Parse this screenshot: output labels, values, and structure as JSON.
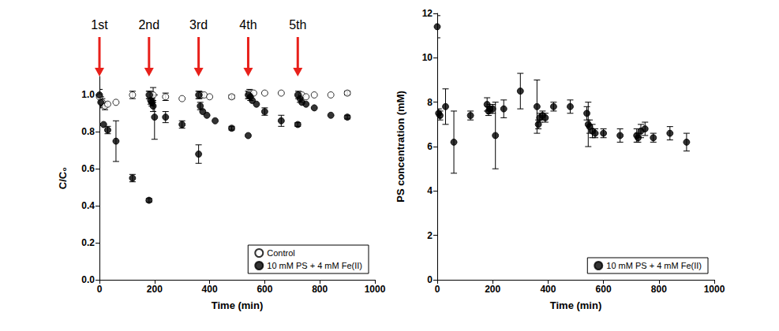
{
  "chart_data": [
    {
      "type": "scatter",
      "x_label": "Time (min)",
      "y_label": "C/C₀",
      "xlim": [
        0,
        1000
      ],
      "xticks": [
        0,
        200,
        400,
        600,
        800,
        1000
      ],
      "ylim": [
        0,
        1.1
      ],
      "yticks": [
        {
          "value": 0,
          "label": "0.0"
        },
        0.2,
        0.4,
        0.6,
        0.8,
        {
          "value": 1,
          "label": "1.0"
        }
      ],
      "grid": false,
      "legend": "lower right",
      "annotations": [
        {
          "text": "1st",
          "x": 0
        },
        {
          "text": "2nd",
          "x": 180
        },
        {
          "text": "3rd",
          "x": 360
        },
        {
          "text": "4th",
          "x": 540
        },
        {
          "text": "5th",
          "x": 720
        }
      ],
      "series": [
        {
          "name": "Control",
          "color": "#000000",
          "marker": "hollow",
          "x": [
            0,
            10,
            20,
            30,
            60,
            120,
            180,
            195,
            240,
            300,
            360,
            370,
            380,
            400,
            480,
            540,
            545,
            560,
            600,
            660,
            720,
            735,
            750,
            780,
            840,
            900
          ],
          "values": [
            0.99,
            0.96,
            0.94,
            0.95,
            0.96,
            1.0,
            1.0,
            1.0,
            0.99,
            0.98,
            1.0,
            1.0,
            1.0,
            0.99,
            0.99,
            1.0,
            1.01,
            1.01,
            1.01,
            1.01,
            1.0,
            1.0,
            0.99,
            1.0,
            1.0,
            1.01
          ],
          "errors": [
            0.04,
            0.02,
            0.02,
            0,
            0,
            0.02,
            0.02,
            0.04,
            0.02,
            0,
            0.02,
            0,
            0,
            0,
            0.01,
            0.02,
            0.02,
            0,
            0,
            0,
            0,
            0,
            0,
            0,
            0,
            0.01
          ]
        },
        {
          "name": "10 mM PS + 4 mM Fe(II)",
          "color": "#000000",
          "marker": "filled",
          "x": [
            0,
            5,
            15,
            30,
            60,
            120,
            180,
            182,
            186,
            190,
            195,
            200,
            240,
            300,
            360,
            362,
            366,
            375,
            390,
            420,
            480,
            540,
            542,
            548,
            555,
            570,
            600,
            660,
            720,
            722,
            728,
            735,
            750,
            780,
            840,
            900
          ],
          "values": [
            1.0,
            0.96,
            0.84,
            0.81,
            0.75,
            0.55,
            0.43,
            1.0,
            0.97,
            0.96,
            0.94,
            0.88,
            0.88,
            0.84,
            0.68,
            1.0,
            0.94,
            0.91,
            0.89,
            0.86,
            0.82,
            0.78,
            1.0,
            0.99,
            0.97,
            0.95,
            0.91,
            0.86,
            0.84,
            1.0,
            0.98,
            0.96,
            0.95,
            0.93,
            0.89,
            0.88
          ],
          "errors": [
            0,
            0.03,
            0,
            0.02,
            0.11,
            0.02,
            0.01,
            0.02,
            0.02,
            0.02,
            0.03,
            0.12,
            0.03,
            0.02,
            0.05,
            0.02,
            0.02,
            0,
            0,
            0,
            0.01,
            0,
            0.02,
            0.02,
            0,
            0,
            0.02,
            0.03,
            0.01,
            0.02,
            0.02,
            0,
            0,
            0,
            0,
            0.01
          ]
        }
      ]
    },
    {
      "type": "scatter",
      "x_label": "Time (min)",
      "y_label": "PS concentration (mM)",
      "xlim": [
        0,
        1000
      ],
      "xticks": [
        0,
        200,
        400,
        600,
        800,
        1000
      ],
      "ylim": [
        0,
        12
      ],
      "yticks": [
        0,
        2,
        4,
        6,
        8,
        10,
        12
      ],
      "grid": false,
      "legend": "lower right",
      "series": [
        {
          "name": "10 mM PS + 4 mM Fe(II)",
          "color": "#000000",
          "marker": "filled",
          "x": [
            0,
            5,
            10,
            30,
            60,
            120,
            180,
            185,
            190,
            200,
            210,
            240,
            300,
            360,
            365,
            370,
            380,
            390,
            420,
            480,
            540,
            545,
            550,
            560,
            570,
            600,
            660,
            720,
            725,
            735,
            750,
            780,
            840,
            900
          ],
          "values": [
            11.4,
            7.5,
            7.4,
            7.8,
            6.2,
            7.4,
            7.9,
            7.6,
            7.7,
            7.7,
            6.5,
            7.7,
            8.5,
            7.8,
            7.0,
            7.3,
            7.4,
            7.3,
            7.8,
            7.8,
            7.5,
            7.0,
            6.9,
            6.7,
            6.6,
            6.6,
            6.5,
            6.5,
            6.4,
            6.7,
            6.8,
            6.4,
            6.6,
            6.2
          ],
          "errors": [
            0.5,
            0.2,
            0.2,
            0.8,
            1.4,
            0.2,
            0.3,
            0.2,
            0.2,
            0.2,
            1.5,
            0.4,
            0.8,
            1.2,
            0.2,
            0.2,
            0.2,
            0.2,
            0.2,
            0.3,
            0.3,
            1.0,
            0.3,
            0.3,
            0.2,
            0.2,
            0.3,
            0.3,
            0.2,
            0.3,
            0.3,
            0.2,
            0.3,
            0.4
          ]
        }
      ]
    }
  ]
}
